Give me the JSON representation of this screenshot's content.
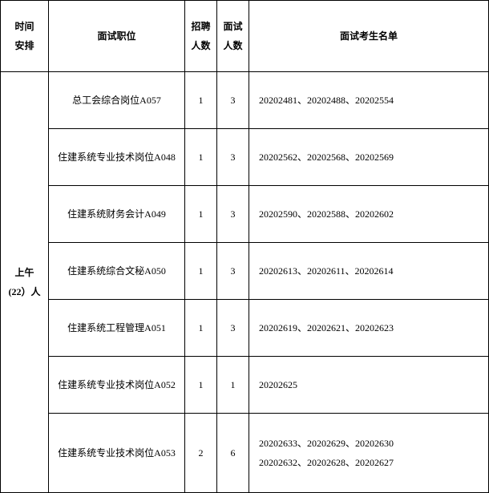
{
  "header": {
    "time": "时间\n安排",
    "position": "面试职位",
    "recruit": "招聘\n人数",
    "interview": "面试\n人数",
    "list": "面试考生名单"
  },
  "time_label": "上午\n(22）人",
  "rows": [
    {
      "position": "总工会综合岗位A057",
      "recruit": "1",
      "interview": "3",
      "list": "20202481、20202488、20202554"
    },
    {
      "position": "住建系统专业技术岗位A048",
      "recruit": "1",
      "interview": "3",
      "list": "20202562、20202568、20202569"
    },
    {
      "position": "住建系统财务会计A049",
      "recruit": "1",
      "interview": "3",
      "list": "20202590、20202588、20202602"
    },
    {
      "position": "住建系统综合文秘A050",
      "recruit": "1",
      "interview": "3",
      "list": "20202613、20202611、20202614"
    },
    {
      "position": "住建系统工程管理A051",
      "recruit": "1",
      "interview": "3",
      "list": "20202619、20202621、20202623"
    },
    {
      "position": "住建系统专业技术岗位A052",
      "recruit": "1",
      "interview": "1",
      "list": "20202625"
    },
    {
      "position": "住建系统专业技术岗位A053",
      "recruit": "2",
      "interview": "6",
      "list": "20202633、20202629、20202630\n20202632、20202628、20202627"
    }
  ]
}
